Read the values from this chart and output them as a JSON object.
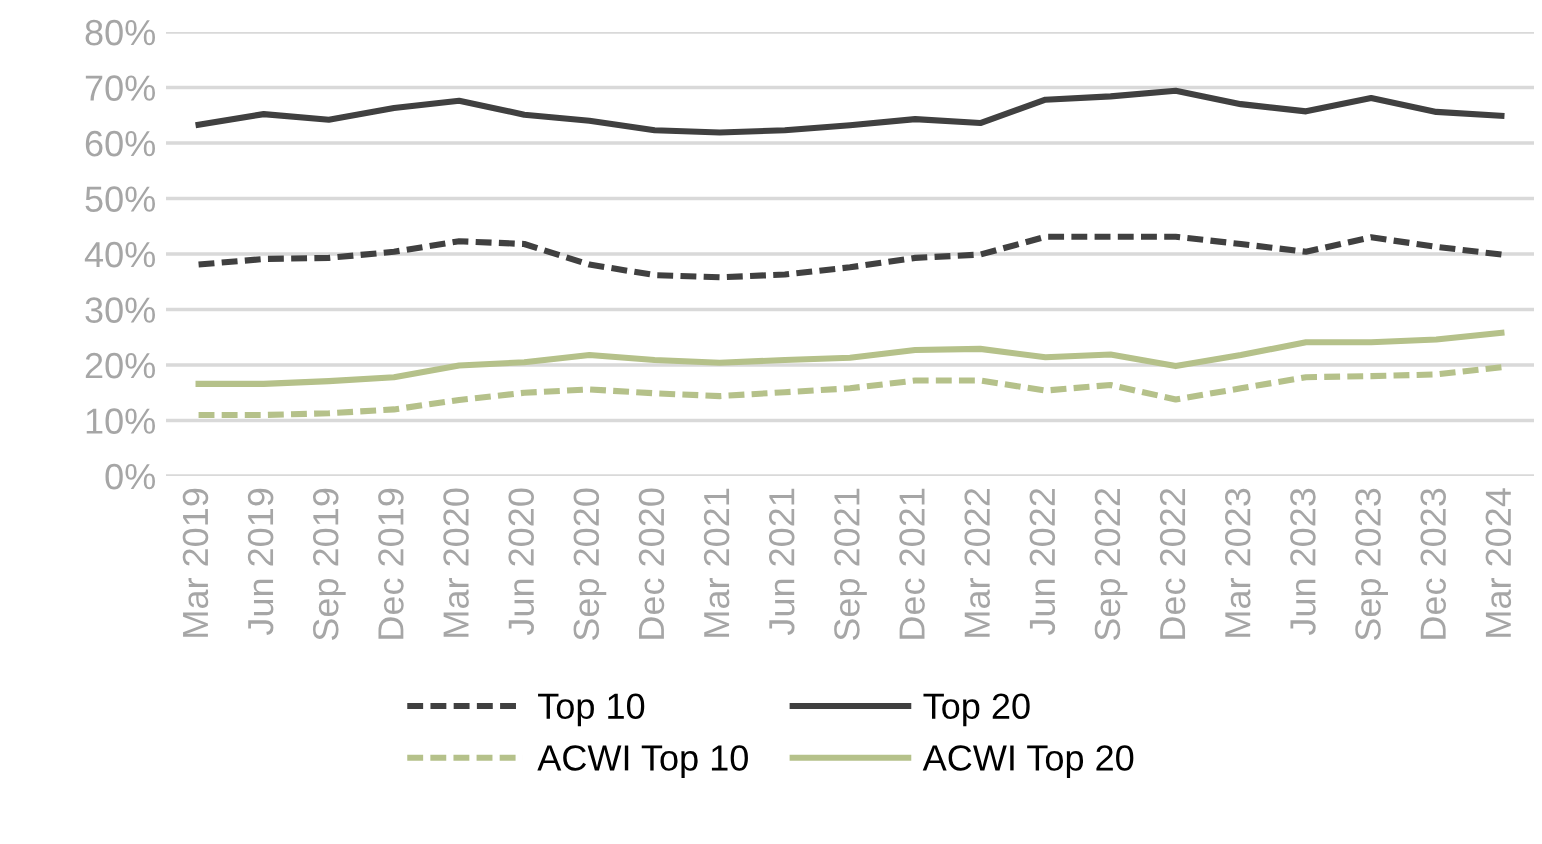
{
  "chart_data": {
    "type": "line",
    "categories": [
      "Mar 2019",
      "Jun 2019",
      "Sep 2019",
      "Dec 2019",
      "Mar 2020",
      "Jun 2020",
      "Sep 2020",
      "Dec 2020",
      "Mar 2021",
      "Jun 2021",
      "Sep 2021",
      "Dec 2021",
      "Mar 2022",
      "Jun 2022",
      "Sep 2022",
      "Dec 2022",
      "Mar 2023",
      "Jun 2023",
      "Sep 2023",
      "Dec 2023",
      "Mar 2024"
    ],
    "series": [
      {
        "name": "Top 10",
        "color": "#404040",
        "line_style": "dashed",
        "values": [
          38.1,
          39.1,
          39.3,
          40.4,
          42.3,
          41.8,
          38.1,
          36.2,
          35.8,
          36.3,
          37.6,
          39.3,
          39.9,
          43.1,
          43.1,
          43.1,
          41.8,
          40.4,
          43.0,
          41.3,
          39.9
        ]
      },
      {
        "name": "Top 20",
        "color": "#404040",
        "line_style": "solid",
        "values": [
          63.3,
          65.2,
          64.2,
          66.3,
          67.6,
          65.1,
          64.0,
          62.3,
          61.9,
          62.3,
          63.2,
          64.3,
          63.6,
          67.8,
          68.4,
          69.4,
          67.0,
          65.7,
          68.1,
          65.6,
          64.9
        ]
      },
      {
        "name": "ACWI Top 10",
        "color": "#b5c18a",
        "line_style": "dashed",
        "values": [
          11.0,
          11.0,
          11.3,
          12.0,
          13.7,
          15.0,
          15.6,
          14.9,
          14.4,
          15.1,
          15.8,
          17.2,
          17.2,
          15.4,
          16.4,
          13.8,
          15.8,
          17.8,
          18.0,
          18.3,
          19.6
        ]
      },
      {
        "name": "ACWI Top 20",
        "color": "#b5c18a",
        "line_style": "solid",
        "values": [
          16.6,
          16.6,
          17.1,
          17.8,
          19.9,
          20.5,
          21.8,
          20.9,
          20.4,
          20.9,
          21.3,
          22.7,
          22.9,
          21.4,
          21.9,
          19.8,
          21.8,
          24.1,
          24.1,
          24.6,
          25.8
        ]
      }
    ],
    "ylim": [
      0,
      80
    ],
    "yticks": [
      {
        "value": 0,
        "label": "0%"
      },
      {
        "value": 10,
        "label": "10%"
      },
      {
        "value": 20,
        "label": "20%"
      },
      {
        "value": 30,
        "label": "30%"
      },
      {
        "value": 40,
        "label": "40%"
      },
      {
        "value": 50,
        "label": "50%"
      },
      {
        "value": 60,
        "label": "60%"
      },
      {
        "value": 70,
        "label": "70%"
      },
      {
        "value": 80,
        "label": "80%"
      }
    ],
    "grid": "y",
    "legend": "bottom"
  }
}
